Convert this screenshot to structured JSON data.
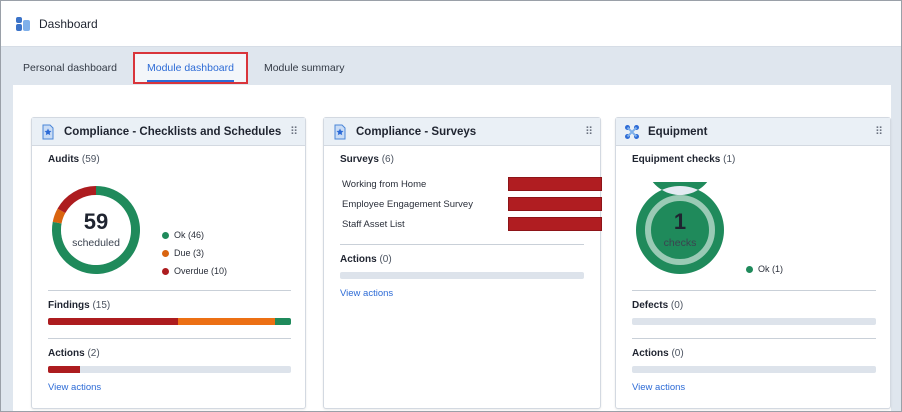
{
  "app": {
    "title": "Dashboard"
  },
  "tabs": [
    {
      "label": "Personal dashboard",
      "active": false
    },
    {
      "label": "Module dashboard",
      "active": true
    },
    {
      "label": "Module summary",
      "active": false
    }
  ],
  "colors": {
    "ok": "#1f8a5b",
    "due": "#d9640f",
    "overdue": "#ad1c1f",
    "track": "#dde3eb",
    "link": "#2d6bd6"
  },
  "cards": {
    "checklists": {
      "title": "Compliance - Checklists and Schedules",
      "icon": "star-badge-icon",
      "audits": {
        "label": "Audits",
        "count": "(59)",
        "donut_number": "59",
        "donut_label": "scheduled",
        "legend": [
          {
            "label": "Ok (46)",
            "color": "#1f8a5b",
            "value": 46
          },
          {
            "label": "Due (3)",
            "color": "#d9640f",
            "value": 3
          },
          {
            "label": "Overdue (10)",
            "color": "#ad1c1f",
            "value": 10
          }
        ]
      },
      "findings": {
        "label": "Findings",
        "count": "(15)",
        "segments": [
          {
            "color": "#ad1c1f",
            "fraction": 0.535
          },
          {
            "color": "#ec7014",
            "fraction": 0.4
          },
          {
            "color": "#1f8a5b",
            "fraction": 0.065
          }
        ]
      },
      "actions": {
        "label": "Actions",
        "count": "(2)",
        "fill_fraction": 0.13,
        "link": "View actions"
      }
    },
    "surveys": {
      "title": "Compliance - Surveys",
      "icon": "star-badge-icon",
      "surveys": {
        "label": "Surveys",
        "count": "(6)",
        "items": [
          {
            "label": "Working from Home"
          },
          {
            "label": "Employee Engagement Survey"
          },
          {
            "label": "Staff Asset List"
          }
        ]
      },
      "actions": {
        "label": "Actions",
        "count": "(0)",
        "link": "View actions"
      }
    },
    "equipment": {
      "title": "Equipment",
      "icon": "equipment-network-icon",
      "checks": {
        "label": "Equipment checks",
        "count": "(1)",
        "donut_number": "1",
        "donut_label": "checks",
        "legend": [
          {
            "label": "Ok (1)",
            "color": "#1f8a5b",
            "value": 1
          }
        ]
      },
      "defects": {
        "label": "Defects",
        "count": "(0)"
      },
      "actions": {
        "label": "Actions",
        "count": "(0)",
        "link": "View actions"
      }
    }
  }
}
